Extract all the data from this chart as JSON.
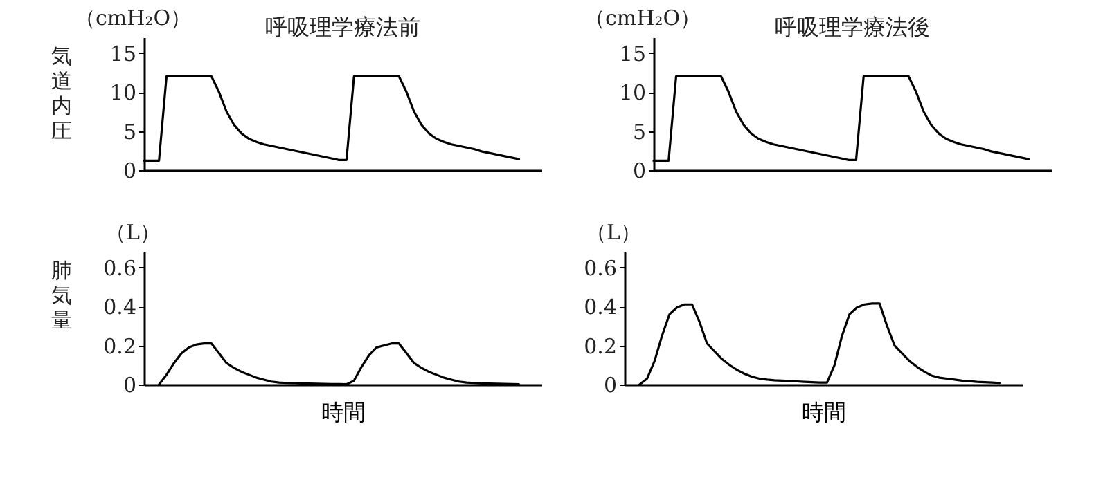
{
  "chart_data": [
    {
      "type": "line",
      "title": "呼吸理学療法前",
      "ylabel": "気道内圧",
      "annotations": [
        "（cmH₂O）"
      ],
      "tick_labels": "y",
      "ylim": [
        0,
        17
      ],
      "yticks": [
        0,
        5,
        10,
        15
      ],
      "categories": [
        null,
        null,
        null,
        null,
        null,
        null,
        null,
        null,
        null,
        null,
        null,
        null,
        null,
        null,
        null,
        null,
        null,
        null,
        null,
        null,
        null,
        null,
        null,
        null,
        null,
        null,
        null,
        null,
        null,
        null,
        null,
        null,
        null,
        null,
        null,
        null,
        null,
        null,
        null,
        null,
        null,
        null,
        null,
        null,
        null,
        null,
        null,
        null,
        null,
        null,
        null
      ],
      "series": [
        {
          "color": "#000000",
          "values": [
            1.2,
            1.2,
            1.2,
            12,
            12,
            12,
            12,
            12,
            12,
            12,
            10,
            7.5,
            5.8,
            4.7,
            4,
            3.6,
            3.3,
            3.1,
            2.9,
            2.7,
            2.5,
            2.3,
            2.1,
            1.9,
            1.7,
            1.5,
            1.3,
            1.3,
            12,
            12,
            12,
            12,
            12,
            12,
            12,
            10,
            7.5,
            5.8,
            4.7,
            4,
            3.6,
            3.3,
            3.1,
            2.9,
            2.7,
            2.4,
            2.2,
            2,
            1.8,
            1.6,
            1.4
          ]
        }
      ]
    },
    {
      "type": "line",
      "title": "呼吸理学療法後",
      "annotations": [
        "（cmH₂O）"
      ],
      "tick_labels": "y",
      "ylim": [
        0,
        17
      ],
      "yticks": [
        0,
        5,
        10,
        15
      ],
      "categories": [
        null,
        null,
        null,
        null,
        null,
        null,
        null,
        null,
        null,
        null,
        null,
        null,
        null,
        null,
        null,
        null,
        null,
        null,
        null,
        null,
        null,
        null,
        null,
        null,
        null,
        null,
        null,
        null,
        null,
        null,
        null,
        null,
        null,
        null,
        null,
        null,
        null,
        null,
        null,
        null,
        null,
        null,
        null,
        null,
        null,
        null,
        null,
        null,
        null,
        null,
        null
      ],
      "series": [
        {
          "color": "#000000",
          "values": [
            1.2,
            1.2,
            1.2,
            12,
            12,
            12,
            12,
            12,
            12,
            12,
            10,
            7.5,
            5.8,
            4.7,
            4,
            3.6,
            3.3,
            3.1,
            2.9,
            2.7,
            2.5,
            2.3,
            2.1,
            1.9,
            1.7,
            1.5,
            1.3,
            1.3,
            12,
            12,
            12,
            12,
            12,
            12,
            12,
            10,
            7.5,
            5.8,
            4.7,
            4,
            3.6,
            3.3,
            3.1,
            2.9,
            2.7,
            2.4,
            2.2,
            2,
            1.8,
            1.6,
            1.4
          ]
        }
      ]
    },
    {
      "type": "line",
      "ylabel": "肺気量",
      "xlabel": "時間",
      "annotations": [
        "（L）"
      ],
      "tick_labels": "y",
      "ylim": [
        0,
        0.68
      ],
      "yticks": [
        0,
        0.2,
        0.4,
        0.6
      ],
      "categories": [
        null,
        null,
        null,
        null,
        null,
        null,
        null,
        null,
        null,
        null,
        null,
        null,
        null,
        null,
        null,
        null,
        null,
        null,
        null,
        null,
        null,
        null,
        null,
        null,
        null,
        null,
        null,
        null,
        null,
        null,
        null,
        null,
        null,
        null,
        null,
        null,
        null,
        null,
        null,
        null,
        null,
        null,
        null,
        null,
        null,
        null,
        null,
        null,
        null,
        null,
        null
      ],
      "series": [
        {
          "color": "#000000",
          "values": [
            null,
            null,
            0,
            0.05,
            0.11,
            0.16,
            0.19,
            0.205,
            0.21,
            0.21,
            0.16,
            0.11,
            0.085,
            0.065,
            0.05,
            0.035,
            0.025,
            0.015,
            0.01,
            0.008,
            0.007,
            0.006,
            0.005,
            0.004,
            0.003,
            0.002,
            0.002,
            0.001,
            0.02,
            0.09,
            0.15,
            0.19,
            0.2,
            0.21,
            0.21,
            0.16,
            0.11,
            0.085,
            0.065,
            0.05,
            0.035,
            0.025,
            0.015,
            0.01,
            0.008,
            0.006,
            0.005,
            0.004,
            0.003,
            0.002,
            0.001
          ]
        }
      ]
    },
    {
      "type": "line",
      "xlabel": "時間",
      "annotations": [
        "（L）"
      ],
      "tick_labels": "y",
      "ylim": [
        0,
        0.68
      ],
      "yticks": [
        0,
        0.2,
        0.4,
        0.6
      ],
      "categories": [
        null,
        null,
        null,
        null,
        null,
        null,
        null,
        null,
        null,
        null,
        null,
        null,
        null,
        null,
        null,
        null,
        null,
        null,
        null,
        null,
        null,
        null,
        null,
        null,
        null,
        null,
        null,
        null,
        null,
        null,
        null,
        null,
        null,
        null,
        null,
        null,
        null,
        null,
        null,
        null,
        null,
        null,
        null,
        null,
        null,
        null,
        null,
        null,
        null,
        null,
        null
      ],
      "series": [
        {
          "color": "#000000",
          "values": [
            null,
            null,
            0,
            0.03,
            0.12,
            0.25,
            0.36,
            0.395,
            0.41,
            0.41,
            0.32,
            0.21,
            0.17,
            0.13,
            0.1,
            0.075,
            0.055,
            0.04,
            0.03,
            0.025,
            0.022,
            0.02,
            0.018,
            0.016,
            0.014,
            0.012,
            0.01,
            0.01,
            0.1,
            0.25,
            0.36,
            0.395,
            0.41,
            0.415,
            0.415,
            0.3,
            0.2,
            0.16,
            0.12,
            0.09,
            0.065,
            0.045,
            0.035,
            0.03,
            0.025,
            0.02,
            0.017,
            0.014,
            0.012,
            0.01,
            0.008
          ]
        }
      ]
    }
  ]
}
